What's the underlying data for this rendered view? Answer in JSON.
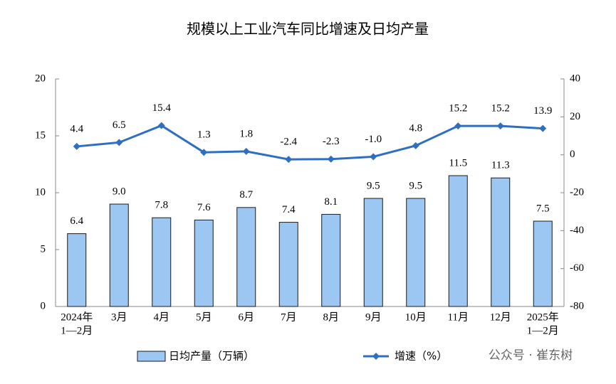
{
  "chart_data": {
    "type": "bar-line",
    "title": "规模以上工业汽车同比增速及日均产量",
    "categories": [
      [
        "2024年",
        "1—2月"
      ],
      [
        "3月"
      ],
      [
        "4月"
      ],
      [
        "5月"
      ],
      [
        "6月"
      ],
      [
        "7月"
      ],
      [
        "8月"
      ],
      [
        "9月"
      ],
      [
        "10月"
      ],
      [
        "11月"
      ],
      [
        "12月"
      ],
      [
        "2025年",
        "1—2月"
      ]
    ],
    "series": [
      {
        "name": "日均产量（万辆）",
        "type": "bar",
        "color": "#9dc7f3",
        "values": [
          6.4,
          9.0,
          7.8,
          7.6,
          8.7,
          7.4,
          8.1,
          9.5,
          9.5,
          11.5,
          11.3,
          7.5
        ],
        "value_labels": [
          "6.4",
          "9.0",
          "7.8",
          "7.6",
          "8.7",
          "7.4",
          "8.1",
          "9.5",
          "9.5",
          "11.5",
          "11.3",
          "7.5"
        ]
      },
      {
        "name": "增速（%）",
        "type": "line",
        "axis": "y2",
        "color": "#2f6fbf",
        "values": [
          4.4,
          6.5,
          15.4,
          1.3,
          1.8,
          -2.4,
          -2.3,
          -1.0,
          4.8,
          15.2,
          15.2,
          13.9
        ],
        "value_labels": [
          "4.4",
          "6.5",
          "15.4",
          "1.3",
          "1.8",
          "-2.4",
          "-2.3",
          "-1.0",
          "4.8",
          "15.2",
          "15.2",
          "13.9"
        ]
      }
    ],
    "ylim": [
      0,
      20
    ],
    "yticks": [
      0,
      5,
      10,
      15,
      20
    ],
    "y2lim": [
      -80,
      40
    ],
    "y2ticks": [
      -80,
      -60,
      -40,
      -20,
      0,
      20,
      40
    ],
    "watermark": "公众号 · 崔东树"
  }
}
